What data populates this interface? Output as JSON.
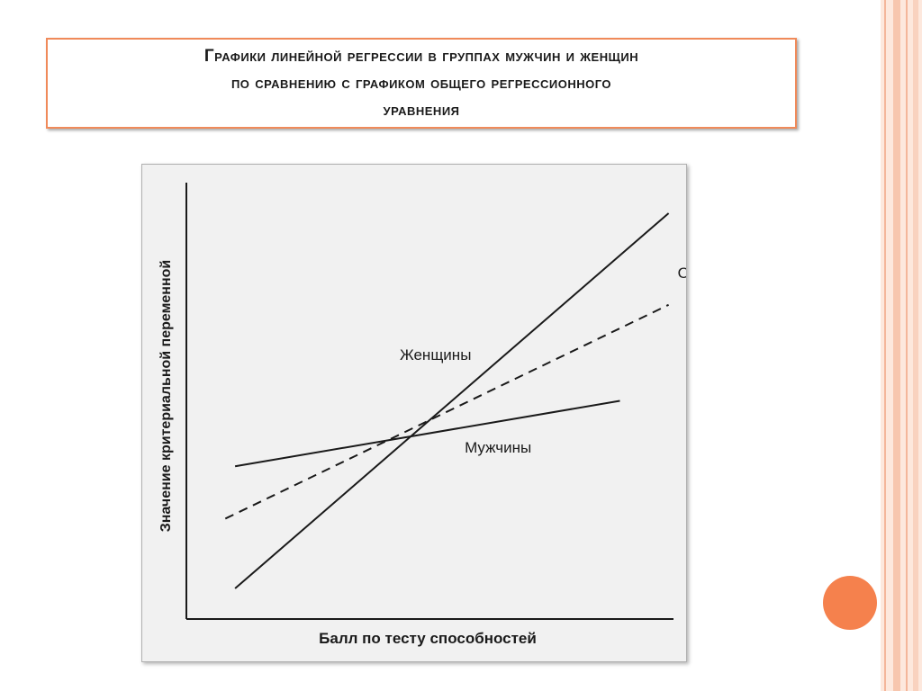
{
  "slide": {
    "title_line1": "Графики линейной регрессии в группах мужчин и женщин",
    "title_line2": "по сравнению с графиком общего регрессионного",
    "title_line3": "уравнения"
  },
  "chart_data": {
    "type": "line",
    "title": "",
    "xlabel": "Балл по тесту способностей",
    "ylabel": "Значение критериальной переменной",
    "xlim": [
      0,
      10
    ],
    "ylim": [
      0,
      10
    ],
    "grid": false,
    "legend": "inline",
    "series": [
      {
        "name": "Женщины",
        "style": "solid",
        "x": [
          1,
          9.9
        ],
        "y": [
          0.7,
          9.3
        ]
      },
      {
        "name": "Общий",
        "style": "dashed",
        "x": [
          0.8,
          9.9
        ],
        "y": [
          2.3,
          7.2
        ]
      },
      {
        "name": "Мужчины",
        "style": "solid",
        "x": [
          1,
          8.9
        ],
        "y": [
          3.5,
          5.0
        ]
      }
    ]
  },
  "colors": {
    "accent": "#f08a5a",
    "circle": "#f5814d",
    "line": "#1a1a1a"
  }
}
